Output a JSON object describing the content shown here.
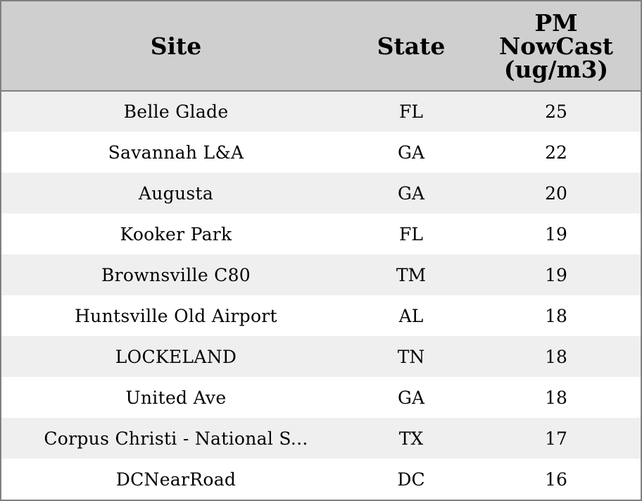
{
  "chart_data": {
    "type": "table",
    "columns": [
      "Site",
      "State",
      "PM NowCast (ug/m3)"
    ],
    "header_lines": {
      "site": [
        "Site"
      ],
      "state": [
        "State"
      ],
      "pm": [
        "PM",
        "NowCast",
        "(ug/m3)"
      ]
    },
    "rows": [
      {
        "site": "Belle Glade",
        "state": "FL",
        "pm": 25
      },
      {
        "site": "Savannah L&A",
        "state": "GA",
        "pm": 22
      },
      {
        "site": "Augusta",
        "state": "GA",
        "pm": 20
      },
      {
        "site": "Kooker Park",
        "state": "FL",
        "pm": 19
      },
      {
        "site": "Brownsville C80",
        "state": "TM",
        "pm": 19
      },
      {
        "site": "Huntsville Old Airport",
        "state": "AL",
        "pm": 18
      },
      {
        "site": "LOCKELAND",
        "state": "TN",
        "pm": 18
      },
      {
        "site": "United Ave",
        "state": "GA",
        "pm": 18
      },
      {
        "site": "Corpus Christi - National S...",
        "state": "TX",
        "pm": 17
      },
      {
        "site": "DCNearRoad",
        "state": "DC",
        "pm": 16
      }
    ],
    "colors": {
      "header_bg": "#cfcfcf",
      "stripe_bg": "#efefef",
      "row_bg": "#ffffff",
      "border": "#808080"
    }
  }
}
